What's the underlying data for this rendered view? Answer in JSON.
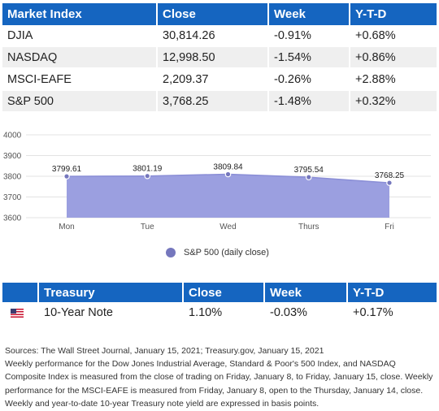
{
  "market_table": {
    "headers": [
      "Market Index",
      "Close",
      "Week",
      "Y-T-D"
    ],
    "rows": [
      {
        "index": "DJIA",
        "close": "30,814.26",
        "week": "-0.91%",
        "ytd": "+0.68%"
      },
      {
        "index": "NASDAQ",
        "close": "12,998.50",
        "week": "-1.54%",
        "ytd": "+0.86%"
      },
      {
        "index": "MSCI-EAFE",
        "close": "2,209.37",
        "week": "-0.26%",
        "ytd": "+2.88%"
      },
      {
        "index": "S&P 500",
        "close": "3,768.25",
        "week": "-1.48%",
        "ytd": "+0.32%"
      }
    ]
  },
  "chart_data": {
    "type": "area",
    "categories": [
      "Mon",
      "Tue",
      "Wed",
      "Thurs",
      "Fri"
    ],
    "series": [
      {
        "name": "S&P 500 (daily close)",
        "values": [
          3799.61,
          3801.19,
          3809.84,
          3795.54,
          3768.25
        ],
        "color": "#7577bd"
      }
    ],
    "data_labels": [
      "3799.61",
      "3801.19",
      "3809.84",
      "3795.54",
      "3768.25"
    ],
    "ylim": [
      3600,
      4000
    ],
    "yticks": [
      3600,
      3700,
      3800,
      3900,
      4000
    ],
    "grid": true,
    "legend": "bottom",
    "title": "",
    "xlabel": "",
    "ylabel": ""
  },
  "treasury_table": {
    "headers": [
      "",
      "Treasury",
      "Close",
      "Week",
      "Y-T-D"
    ],
    "row": {
      "flag_icon": "us-flag-icon",
      "name": "10-Year Note",
      "close": "1.10%",
      "week": "-0.03%",
      "ytd": "+0.17%"
    }
  },
  "notes": {
    "sources": "Sources: The Wall Street Journal, January 15, 2021; Treasury.gov, January 15, 2021",
    "body": "Weekly performance for the Dow Jones Industrial Average, Standard & Poor's 500 Index, and NASDAQ Composite Index is measured from the close of trading on Friday, January 8, to Friday, January 15, close. Weekly performance for the MSCI-EAFE is measured from Friday, January 8, open to the Thursday, January 14, close. Weekly and year-to-date 10-year Treasury note yield are expressed in basis points."
  },
  "colors": {
    "header_blue": "#1565c0",
    "area_fill": "#9b9fe0",
    "marker": "#7577bd"
  }
}
